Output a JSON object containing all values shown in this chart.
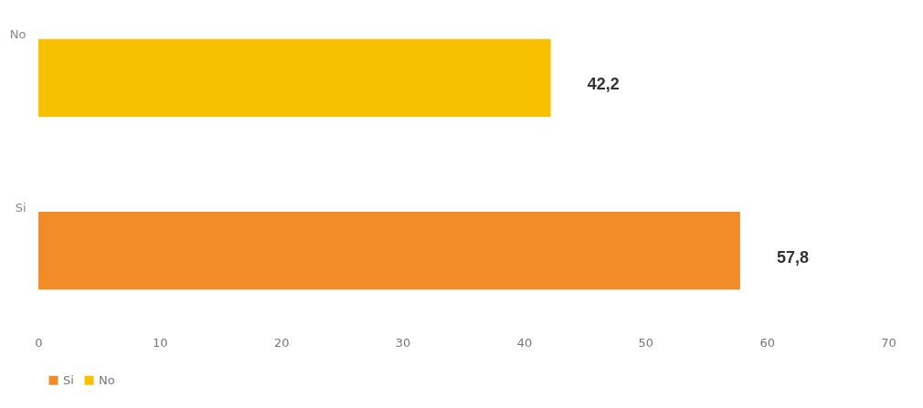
{
  "chart_data": {
    "type": "bar",
    "orientation": "horizontal",
    "categories": [
      "No",
      "Si"
    ],
    "series": [
      {
        "name": "Si",
        "color": "#f28c28",
        "values": [
          null,
          57.8
        ],
        "value_labels": [
          null,
          "57,8"
        ]
      },
      {
        "name": "No",
        "color": "#f7c000",
        "values": [
          42.2,
          null
        ],
        "value_labels": [
          "42,2",
          null
        ]
      }
    ],
    "xlim": [
      0,
      70
    ],
    "xticks": [
      0,
      10,
      20,
      30,
      40,
      50,
      60,
      70
    ],
    "grid": false,
    "legend": "bottom"
  }
}
